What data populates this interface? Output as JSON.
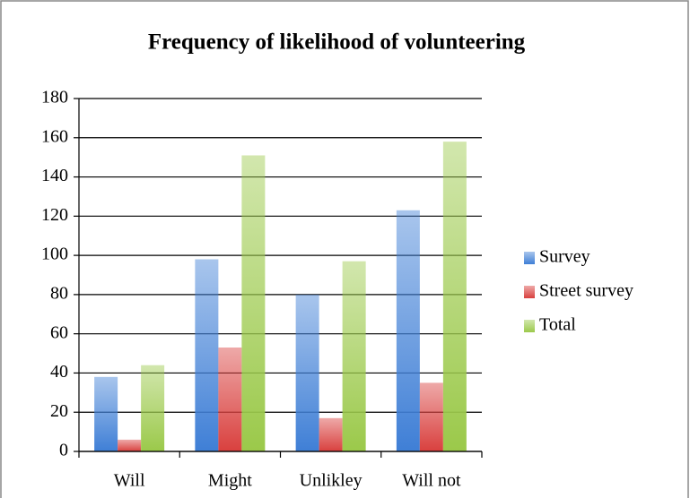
{
  "chart_data": {
    "type": "bar",
    "title": "Frequency of likelihood of volunteering",
    "categories": [
      "Will",
      "Might",
      "Unlikley",
      "Will not"
    ],
    "series": [
      {
        "name": "Survey",
        "color": "#3f7fd6",
        "values": [
          38,
          98,
          80,
          123
        ]
      },
      {
        "name": "Street survey",
        "color": "#d9403e",
        "values": [
          6,
          53,
          17,
          35
        ]
      },
      {
        "name": "Total",
        "color": "#9bc94a",
        "values": [
          44,
          151,
          97,
          158
        ]
      }
    ],
    "ylim": [
      0,
      180
    ],
    "yticks": [
      0,
      20,
      40,
      60,
      80,
      100,
      120,
      140,
      160,
      180
    ],
    "grid": true,
    "legend": "right"
  }
}
